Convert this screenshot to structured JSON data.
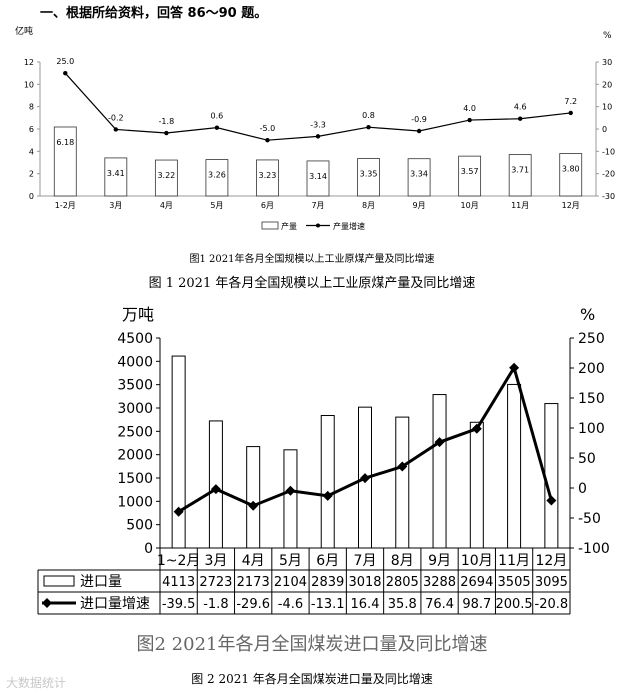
{
  "heading": "一、根据所给资料，回答 86～90 题。",
  "watermark": "大数据统计",
  "charts": [
    {
      "type": "bar+line",
      "caption": "图1   2021年各月全国规模以上工业原煤产量及同比增速",
      "outer_caption": "图 1 2021 年各月全国规模以上工业原煤产量及同比增速",
      "left_unit": "亿吨",
      "right_unit": "%",
      "left_ticks": [
        "0",
        "2",
        "4",
        "6",
        "8",
        "10",
        "12"
      ],
      "right_ticks": [
        "-30",
        "-20",
        "-10",
        "0",
        "10",
        "20",
        "30"
      ],
      "ylim_left": [
        0,
        12
      ],
      "ylim_right": [
        -30,
        30
      ],
      "categories": [
        "1-2月",
        "3月",
        "4月",
        "5月",
        "6月",
        "7月",
        "8月",
        "9月",
        "10月",
        "11月",
        "12月"
      ],
      "bar_values": [
        6.18,
        3.41,
        3.22,
        3.26,
        3.23,
        3.14,
        3.35,
        3.34,
        3.57,
        3.71,
        3.8
      ],
      "line_values": [
        25.0,
        -0.2,
        -1.8,
        0.6,
        -5.0,
        -3.3,
        0.8,
        -0.9,
        4.0,
        4.6,
        7.2
      ],
      "bar_labels": [
        "6.18",
        "3.41",
        "3.22",
        "3.26",
        "3.23",
        "3.14",
        "3.35",
        "3.34",
        "3.57",
        "3.71",
        "3.80"
      ],
      "line_labels": [
        "25.0",
        "-0.2",
        "-1.8",
        "0.6",
        "-5.0",
        "-3.3",
        "0.8",
        "-0.9",
        "4.0",
        "4.6",
        "7.2"
      ],
      "legend": {
        "bar": "产量",
        "line": "产量增速"
      },
      "legend_position": "bottom"
    },
    {
      "type": "bar+line",
      "caption": "图2  2021年各月全国煤炭进口量及同比增速",
      "outer_caption": "图 2 2021 年各月全国煤炭进口量及同比增速",
      "left_unit": "万吨",
      "right_unit": "%",
      "left_ticks": [
        "0",
        "500",
        "1000",
        "1500",
        "2000",
        "2500",
        "3000",
        "3500",
        "4000",
        "4500"
      ],
      "right_ticks": [
        "-100",
        "-50",
        "0",
        "50",
        "100",
        "150",
        "200",
        "250"
      ],
      "ylim_left": [
        0,
        4500
      ],
      "ylim_right": [
        -100,
        250
      ],
      "categories": [
        "1~2月",
        "3月",
        "4月",
        "5月",
        "6月",
        "7月",
        "8月",
        "9月",
        "10月",
        "11月",
        "12月"
      ],
      "bar_values": [
        4113,
        2723,
        2173,
        2104,
        2839,
        3018,
        2805,
        3288,
        2694,
        3505,
        3095
      ],
      "line_values": [
        -39.5,
        -1.8,
        -29.6,
        -4.6,
        -13.1,
        16.4,
        35.8,
        76.4,
        98.7,
        200.5,
        -20.8
      ],
      "table_bar_row": [
        "4113",
        "2723",
        "2173",
        "2104",
        "2839",
        "3018",
        "2805",
        "3288",
        "2694",
        "3505",
        "3095"
      ],
      "table_line_row": [
        "-39.5",
        "-1.8",
        "-29.6",
        "-4.6",
        "-13.1",
        "16.4",
        "35.8",
        "76.4",
        "98.7",
        "200.5",
        "-20.8"
      ],
      "legend": {
        "bar": "进口量",
        "line": "进口量增速"
      },
      "legend_position": "data-table"
    }
  ]
}
